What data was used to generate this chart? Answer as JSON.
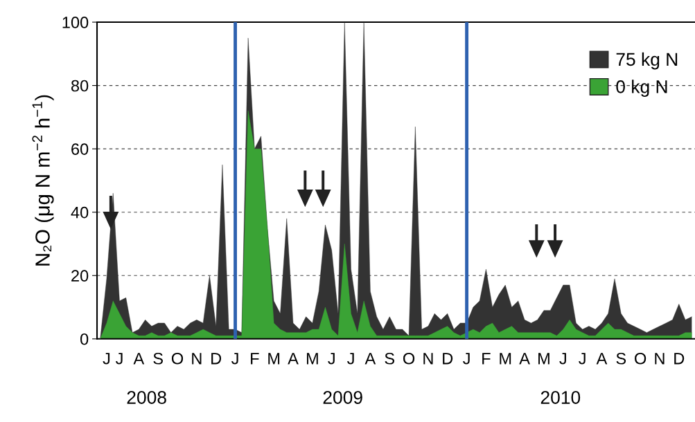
{
  "chart_data": {
    "type": "area",
    "ylabel": "N₂O (μg N m$^{−2}$ h$^{−1}$)",
    "annotations": [
      "2008",
      "2009",
      "2010"
    ],
    "categories": [
      null,
      "J",
      null,
      "J",
      null,
      null,
      "A",
      null,
      null,
      "S",
      null,
      null,
      "O",
      null,
      null,
      "N",
      null,
      null,
      "D",
      null,
      null,
      "J",
      null,
      null,
      "F",
      null,
      null,
      "M",
      null,
      null,
      "A",
      null,
      null,
      "M",
      null,
      null,
      "J",
      null,
      null,
      "J",
      null,
      null,
      "A",
      null,
      null,
      "S",
      null,
      null,
      "O",
      null,
      null,
      "N",
      null,
      null,
      "D",
      null,
      null,
      "J",
      null,
      null,
      "F",
      null,
      null,
      "M",
      null,
      null,
      "A",
      null,
      null,
      "M",
      null,
      null,
      "J",
      null,
      null,
      "J",
      null,
      null,
      "A",
      null,
      null,
      "S",
      null,
      null,
      "O",
      null,
      null,
      "N",
      null,
      null,
      "D",
      null,
      null
    ],
    "ylim": [
      0,
      100
    ],
    "yticks": [
      0,
      20,
      40,
      60,
      80,
      100
    ],
    "grid": "y",
    "legend": "top right",
    "series": [
      {
        "name": "75 kg N",
        "color": "#333333",
        "values": [
          0,
          19,
          46,
          12,
          13,
          2,
          3,
          6,
          4,
          5,
          5,
          2,
          4,
          3,
          5,
          6,
          5,
          20,
          4,
          55,
          3,
          3,
          2,
          95,
          60,
          64,
          35,
          12,
          8,
          38,
          5,
          3,
          7,
          5,
          15,
          36,
          28,
          8,
          100,
          22,
          8,
          100,
          15,
          7,
          3,
          7,
          3,
          3,
          1,
          67,
          3,
          4,
          8,
          6,
          8,
          3,
          5,
          5,
          10,
          12,
          22,
          10,
          14,
          17,
          10,
          12,
          6,
          5,
          6,
          9,
          9,
          13,
          17,
          17,
          5,
          3,
          4,
          3,
          5,
          8,
          19,
          8,
          5,
          4,
          3,
          2,
          3,
          4,
          5,
          6,
          11,
          6,
          7
        ]
      },
      {
        "name": "0 kg N",
        "color": "#3aa335",
        "values": [
          0,
          5,
          12,
          8,
          4,
          2,
          1,
          1,
          2,
          1,
          1,
          2,
          1,
          1,
          1,
          2,
          3,
          2,
          1,
          1,
          1,
          1,
          1,
          72,
          60,
          60,
          35,
          5,
          3,
          2,
          2,
          2,
          2,
          3,
          3,
          10,
          3,
          1,
          30,
          8,
          2,
          12,
          4,
          1,
          1,
          1,
          1,
          1,
          1,
          1,
          1,
          1,
          2,
          3,
          4,
          2,
          1,
          2,
          3,
          2,
          4,
          5,
          2,
          3,
          4,
          2,
          2,
          2,
          2,
          2,
          2,
          1,
          3,
          6,
          3,
          2,
          1,
          1,
          3,
          5,
          3,
          3,
          2,
          1,
          1,
          1,
          1,
          1,
          1,
          1,
          1,
          2,
          2
        ]
      }
    ]
  }
}
